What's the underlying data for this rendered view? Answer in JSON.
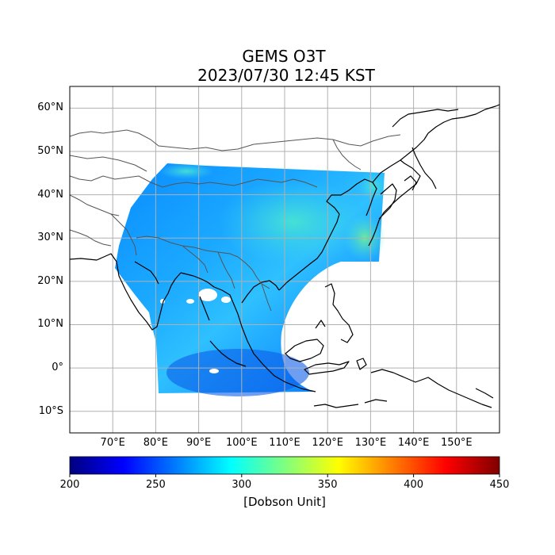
{
  "title": "GEMS O3T",
  "subtitle": "2023/07/30 12:45 KST",
  "map": {
    "lon_range": [
      60,
      160
    ],
    "lat_range": [
      -15,
      65
    ],
    "lon_ticks": [
      {
        "v": 70,
        "label": "70°E"
      },
      {
        "v": 80,
        "label": "80°E"
      },
      {
        "v": 90,
        "label": "90°E"
      },
      {
        "v": 100,
        "label": "100°E"
      },
      {
        "v": 110,
        "label": "110°E"
      },
      {
        "v": 120,
        "label": "120°E"
      },
      {
        "v": 130,
        "label": "130°E"
      },
      {
        "v": 140,
        "label": "140°E"
      },
      {
        "v": 150,
        "label": "150°E"
      }
    ],
    "lat_ticks": [
      {
        "v": 60,
        "label": "60°N"
      },
      {
        "v": 50,
        "label": "50°N"
      },
      {
        "v": 40,
        "label": "40°N"
      },
      {
        "v": 30,
        "label": "30°N"
      },
      {
        "v": 20,
        "label": "20°N"
      },
      {
        "v": 10,
        "label": "10°N"
      },
      {
        "v": 0,
        "label": "0°"
      },
      {
        "v": -10,
        "label": "10°S"
      }
    ],
    "grid": true,
    "projection": "PlateCarree"
  },
  "colorbar": {
    "label": "[Dobson Unit]",
    "min": 200,
    "max": 450,
    "ticks": [
      "200",
      "250",
      "300",
      "350",
      "400",
      "450"
    ],
    "colormap": "jet",
    "colors": [
      "#00007f",
      "#0000ff",
      "#007fff",
      "#00ffff",
      "#7fff7f",
      "#ffff00",
      "#ff7f00",
      "#ff0000",
      "#7f0000"
    ]
  },
  "field": {
    "variable": "O3T",
    "typical_value": 265,
    "range_seen": [
      240,
      320
    ]
  }
}
